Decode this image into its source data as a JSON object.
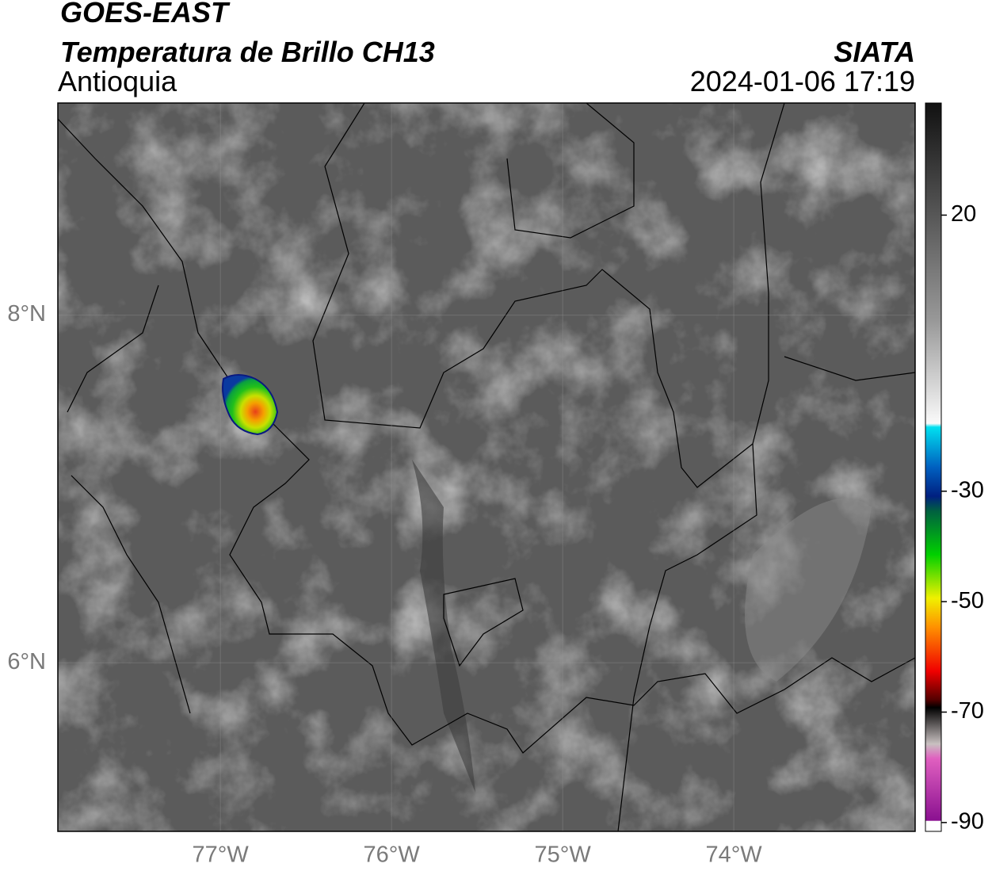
{
  "header": {
    "title": "GOES-EAST",
    "subtitle": "Temperatura de Brillo CH13",
    "region": "Antioquia",
    "source": "SIATA",
    "datetime": "2024-01-06 17:19"
  },
  "map": {
    "lonlim": [
      -77.95,
      -72.94
    ],
    "latlim": [
      5.03,
      9.22
    ],
    "lon_ticks": [
      {
        "value": -77,
        "label": "77°W"
      },
      {
        "value": -76,
        "label": "76°W"
      },
      {
        "value": -75,
        "label": "75°W"
      },
      {
        "value": -74,
        "label": "74°W"
      }
    ],
    "lat_ticks": [
      {
        "value": 8,
        "label": "8°N"
      },
      {
        "value": 6,
        "label": "6°N"
      }
    ]
  },
  "colorbar": {
    "lim": [
      -91.6,
      40.3
    ],
    "ticks": [
      20,
      -30,
      -50,
      -70,
      -90
    ]
  }
}
